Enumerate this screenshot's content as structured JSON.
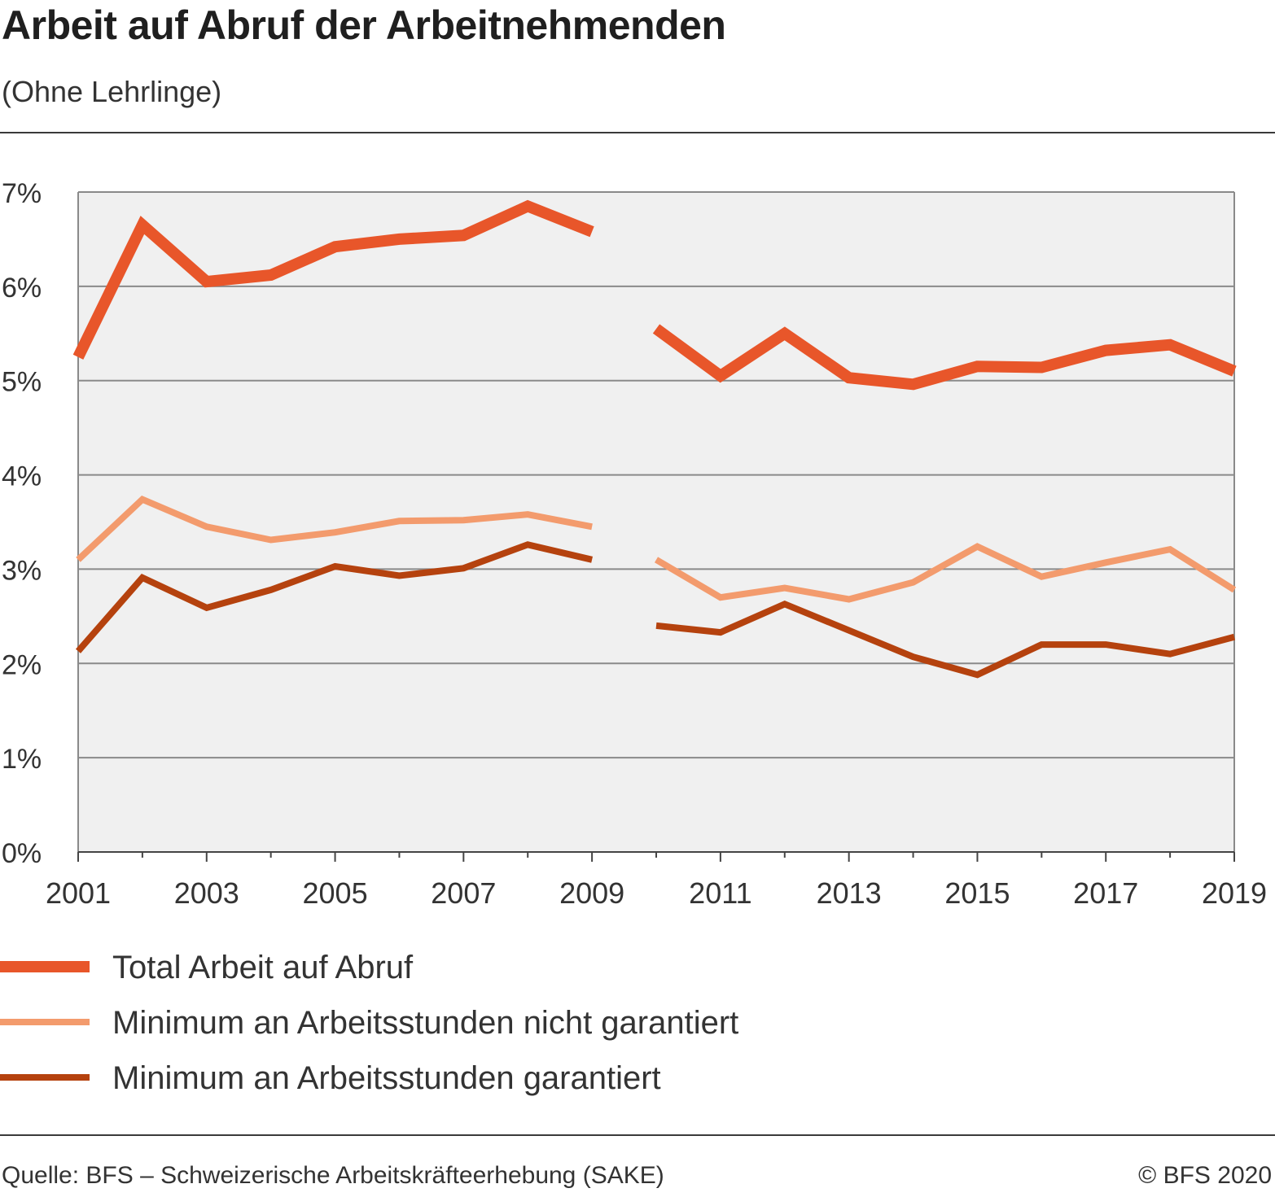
{
  "header": {
    "title": "Arbeit auf Abruf der Arbeitnehmenden",
    "subtitle": "(Ohne Lehrlinge)"
  },
  "footer": {
    "source": "Quelle: BFS – Schweizerische Arbeitskräfteerhebung (SAKE)",
    "copyright": "© BFS 2020"
  },
  "chart_data": {
    "type": "line",
    "title": "Arbeit auf Abruf der Arbeitnehmenden",
    "subtitle": "(Ohne Lehrlinge)",
    "xlabel": "",
    "ylabel": "",
    "x": [
      2001,
      2002,
      2003,
      2004,
      2005,
      2006,
      2007,
      2008,
      2009,
      2010,
      2011,
      2012,
      2013,
      2014,
      2015,
      2016,
      2017,
      2018,
      2019
    ],
    "xtick_labels": [
      "2001",
      "2003",
      "2005",
      "2007",
      "2009",
      "2011",
      "2013",
      "2015",
      "2017",
      "2019"
    ],
    "xlim": [
      2001,
      2019
    ],
    "ylim": [
      0,
      7
    ],
    "ytick_labels": [
      "0%",
      "1%",
      "2%",
      "3%",
      "4%",
      "5%",
      "6%",
      "7%"
    ],
    "grid": true,
    "legend_position": "bottom",
    "series": [
      {
        "name": "Total Arbeit auf Abruf",
        "color": "#e8562a",
        "values": [
          5.25,
          6.65,
          6.05,
          6.12,
          6.42,
          6.5,
          6.54,
          6.85,
          6.58,
          5.55,
          5.05,
          5.5,
          5.03,
          4.96,
          5.15,
          5.14,
          5.32,
          5.38,
          5.1
        ]
      },
      {
        "name": "Minimum an Arbeitsstunden nicht garantiert",
        "color": "#f39b6d",
        "values": [
          3.1,
          3.74,
          3.45,
          3.31,
          3.39,
          3.51,
          3.52,
          3.58,
          3.45,
          3.1,
          2.7,
          2.8,
          2.68,
          2.86,
          3.24,
          2.92,
          3.07,
          3.21,
          2.78
        ]
      },
      {
        "name": "Minimum an Arbeitsstunden garantiert",
        "color": "#b5420e",
        "values": [
          2.13,
          2.91,
          2.59,
          2.78,
          3.03,
          2.93,
          3.01,
          3.26,
          3.1,
          2.4,
          2.33,
          2.63,
          2.35,
          2.07,
          1.88,
          2.2,
          2.2,
          2.1,
          2.28
        ]
      }
    ],
    "gap_between": [
      2009,
      2010
    ]
  }
}
